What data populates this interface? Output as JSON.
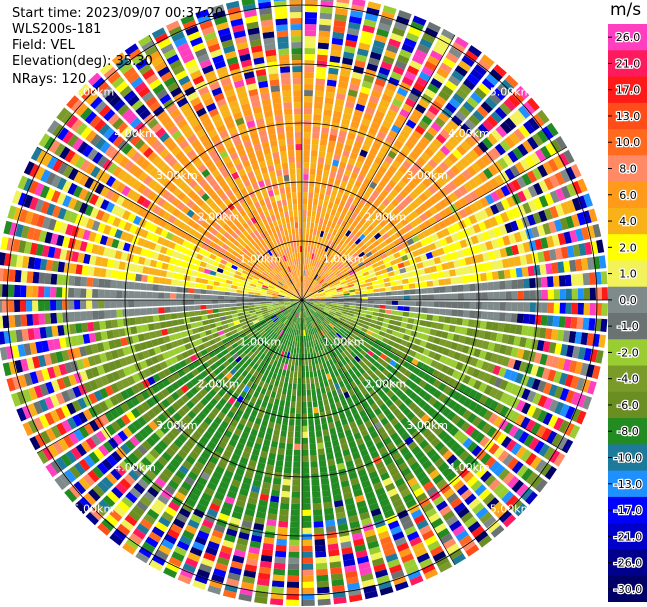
{
  "header": {
    "start_time": "Start time: 2023/09/07 00:37:20",
    "instrument": "WLS200s-181",
    "field": "Field: VEL",
    "elevation": "Elevation(deg): 35.30",
    "nrays": "NRays: 120"
  },
  "colorbar": {
    "unit": "m/s",
    "ticks": [
      "26.0",
      "21.0",
      "17.0",
      "13.0",
      "10.0",
      "8.0",
      "6.0",
      "4.0",
      "2.0",
      "1.0",
      "0.0",
      "-1.0",
      "-2.0",
      "-4.0",
      "-6.0",
      "-8.0",
      "-10.0",
      "-13.0",
      "-17.0",
      "-21.0",
      "-26.0",
      "-30.0"
    ],
    "colors": [
      "#ff3fbf",
      "#ff1a5e",
      "#ff1a1a",
      "#ff4d1a",
      "#ff6a1f",
      "#ff8a65",
      "#ff9a1a",
      "#f8b218",
      "#ffff00",
      "#f2f25a",
      "#7f8a8a",
      "#6a7272",
      "#9acd32",
      "#7a9a2a",
      "#6b8e23",
      "#228b22",
      "#1e7a9a",
      "#1e90ff",
      "#0000ff",
      "#0000c8",
      "#00008b",
      "#000066"
    ]
  },
  "chart_data": {
    "type": "heatmap",
    "subtype": "polar PPI",
    "field": "VEL",
    "units": "m/s",
    "n_rays": 120,
    "elevation_deg": 35.3,
    "range_rings_km": [
      "1.00km",
      "2.00km",
      "3.00km",
      "4.00km",
      "5.00km"
    ],
    "color_scale": [
      -30.0,
      26.0
    ],
    "pattern": "Near-field (to about 4 km): positive velocities (yellow/orange, ~2-8 m/s) in the northern half, negative velocities (green, ~-2 to -8 m/s) in the southern half, near-zero (gray) along the east-west axis; beyond about 4 km the gates are dominated by noise with random colors across the full scale."
  }
}
